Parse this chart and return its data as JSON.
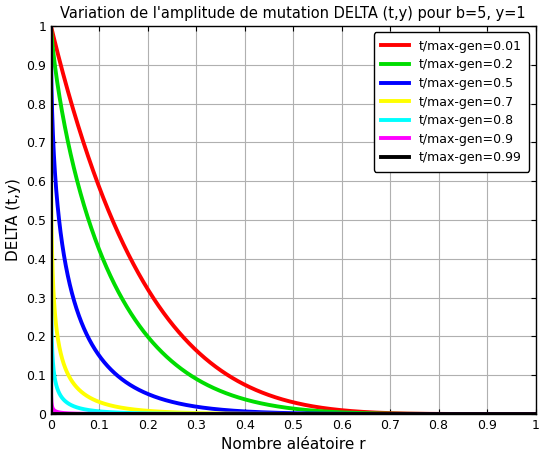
{
  "title": "Variation de l'amplitude de mutation DELTA (t,y) pour b=5, y=1",
  "xlabel": "Nombre aléatoire r",
  "ylabel": "DELTA (t,y)",
  "b": 5,
  "y": 1,
  "series": [
    {
      "label": "t/max-gen=0.01",
      "ratio": 0.01,
      "color": "#ff0000"
    },
    {
      "label": "t/max-gen=0.2",
      "ratio": 0.2,
      "color": "#00dd00"
    },
    {
      "label": "t/max-gen=0.5",
      "ratio": 0.5,
      "color": "#0000ff"
    },
    {
      "label": "t/max-gen=0.7",
      "ratio": 0.7,
      "color": "#ffff00"
    },
    {
      "label": "t/max-gen=0.8",
      "ratio": 0.8,
      "color": "#00ffff"
    },
    {
      "label": "t/max-gen=0.9",
      "ratio": 0.9,
      "color": "#ff00ff"
    },
    {
      "label": "t/max-gen=0.99",
      "ratio": 0.99,
      "color": "#000000"
    }
  ],
  "xlim": [
    0,
    1
  ],
  "ylim": [
    0,
    1
  ],
  "xticks": [
    0,
    0.1,
    0.2,
    0.3,
    0.4,
    0.5,
    0.6,
    0.7,
    0.8,
    0.9,
    1.0
  ],
  "yticks": [
    0,
    0.1,
    0.2,
    0.3,
    0.4,
    0.5,
    0.6,
    0.7,
    0.8,
    0.9,
    1.0
  ],
  "linewidth": 2.8,
  "background_color": "#ffffff",
  "grid_color": "#b0b0b0"
}
